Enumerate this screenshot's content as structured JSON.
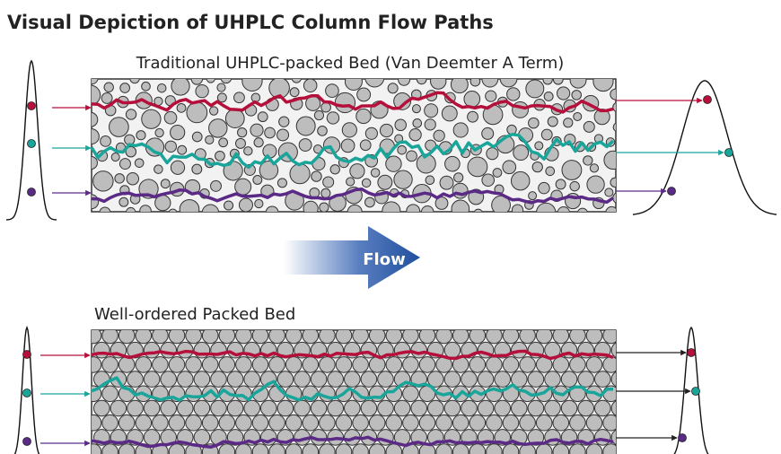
{
  "header": {
    "title": "Visual Depiction of UHPLC Column Flow Paths"
  },
  "beds": [
    {
      "label": "Traditional UHPLC-packed Bed (Van Deemter A Term)"
    },
    {
      "label": "Well-ordered Packed Bed"
    }
  ],
  "flow_arrow": {
    "label": "Flow"
  }
}
